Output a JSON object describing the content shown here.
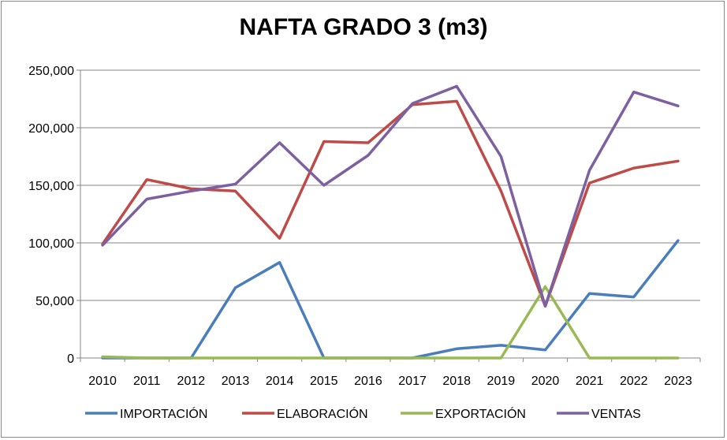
{
  "chart_data": {
    "type": "line",
    "title": "NAFTA GRADO 3 (m3)",
    "xlabel": "",
    "ylabel": "",
    "categories": [
      "2010",
      "2011",
      "2012",
      "2013",
      "2014",
      "2015",
      "2016",
      "2017",
      "2018",
      "2019",
      "2020",
      "2021",
      "2022",
      "2023"
    ],
    "ylim": [
      0,
      250000
    ],
    "yticks": [
      0,
      50000,
      100000,
      150000,
      200000,
      250000
    ],
    "ytick_labels": [
      "0",
      "50,000",
      "100,000",
      "150,000",
      "200,000",
      "250,000"
    ],
    "grid": true,
    "legend_position": "bottom",
    "series": [
      {
        "name": "IMPORTACIÓN",
        "color": "#4a7ebb",
        "values": [
          0,
          0,
          0,
          61000,
          83000,
          0,
          0,
          0,
          8000,
          11000,
          7000,
          56000,
          53000,
          102000
        ]
      },
      {
        "name": "ELABORACIÓN",
        "color": "#be4b48",
        "values": [
          99000,
          155000,
          147000,
          145000,
          104000,
          188000,
          187000,
          220000,
          223000,
          145000,
          45000,
          152000,
          165000,
          171000
        ]
      },
      {
        "name": "EXPORTACIÓN",
        "color": "#98b954",
        "values": [
          1000,
          0,
          0,
          0,
          0,
          0,
          0,
          0,
          0,
          0,
          62000,
          0,
          0,
          0
        ]
      },
      {
        "name": "VENTAS",
        "color": "#7d60a0",
        "values": [
          98000,
          138000,
          145000,
          151000,
          187000,
          150000,
          176000,
          221000,
          236000,
          175000,
          45000,
          163000,
          231000,
          219000
        ]
      }
    ]
  }
}
